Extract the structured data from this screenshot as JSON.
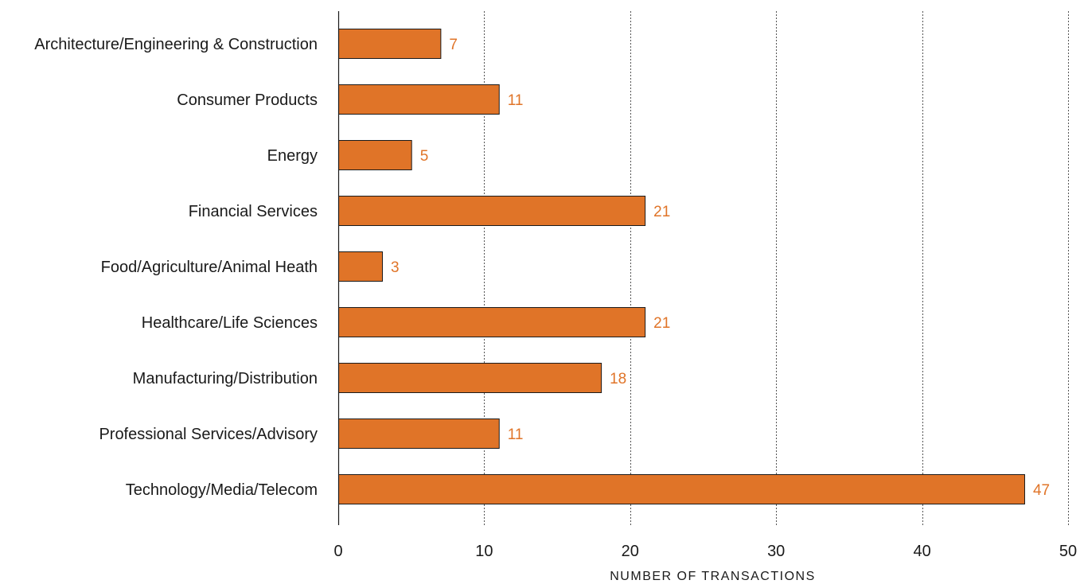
{
  "chart_data": {
    "type": "bar",
    "orientation": "horizontal",
    "categories": [
      "Architecture/Engineering & Construction",
      "Consumer Products",
      "Energy",
      "Financial Services",
      "Food/Agriculture/Animal Heath",
      "Healthcare/Life Sciences",
      "Manufacturing/Distribution",
      "Professional Services/Advisory",
      "Technology/Media/Telecom"
    ],
    "values": [
      7,
      11,
      5,
      21,
      3,
      21,
      18,
      11,
      47
    ],
    "data_labels": [
      "7",
      "11",
      "5",
      "21",
      "3",
      "21",
      "18",
      "11",
      "47"
    ],
    "xlabel": "NUMBER OF TRANSACTIONS",
    "xlim": [
      0,
      50
    ],
    "xticks": [
      0,
      10,
      20,
      30,
      40,
      50
    ],
    "xtick_labels": [
      "0",
      "10",
      "20",
      "30",
      "40",
      "50"
    ],
    "grid": "vertical-dotted",
    "colors": {
      "bar_fill": "#e07428",
      "bar_stroke": "#1a1a1a",
      "data_label": "#e07428",
      "grid": "#555555",
      "axis": "#1a1a1a"
    }
  }
}
